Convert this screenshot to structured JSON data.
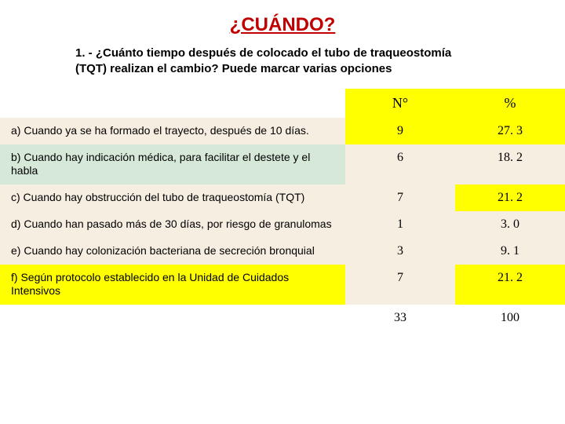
{
  "title": "¿CUÁNDO?",
  "question": "1. - ¿Cuánto tiempo después de colocado el tubo de traqueostomía (TQT) realizan el cambio? Puede marcar varias opciones",
  "headers": {
    "n": "N°",
    "pct": "%"
  },
  "header_row_bg": "#ffff00",
  "header_empty_bg": "#ffffff",
  "rows": [
    {
      "desc": "a)  Cuando ya se ha formado el trayecto, después de 10 días.",
      "n": "9",
      "pct": "27. 3",
      "desc_bg": "#f7eee2",
      "n_bg": "#ffff00",
      "pct_bg": "#ffff00"
    },
    {
      "desc": "b) Cuando hay  indicación médica, para facilitar el destete y el habla",
      "n": "6",
      "pct": "18. 2",
      "desc_bg": "#d6e9d8",
      "n_bg": "#f7eee2",
      "pct_bg": "#f7eee2"
    },
    {
      "desc": "c) Cuando hay obstrucción del tubo de traqueostomía (TQT)",
      "n": "7",
      "pct": "21. 2",
      "desc_bg": "#f7eee2",
      "n_bg": "#f7eee2",
      "pct_bg": "#ffff00"
    },
    {
      "desc": "d) Cuando han pasado más de 30 días, por riesgo de granulomas",
      "n": "1",
      "pct": "3. 0",
      "desc_bg": "#f7eee2",
      "n_bg": "#f7eee2",
      "pct_bg": "#f7eee2"
    },
    {
      "desc": "e) Cuando hay  colonización bacteriana de secreción bronquial",
      "n": "3",
      "pct": "9. 1",
      "desc_bg": "#f7eee2",
      "n_bg": "#f7eee2",
      "pct_bg": "#f7eee2"
    },
    {
      "desc": "f) Según protocolo establecido en la Unidad de Cuidados Intensivos",
      "n": "7",
      "pct": "21. 2",
      "desc_bg": "#ffff00",
      "n_bg": "#f7eee2",
      "pct_bg": "#ffff00"
    }
  ],
  "total": {
    "n": "33",
    "pct": "100",
    "bg": "#ffffff"
  },
  "title_color": "#c00000"
}
